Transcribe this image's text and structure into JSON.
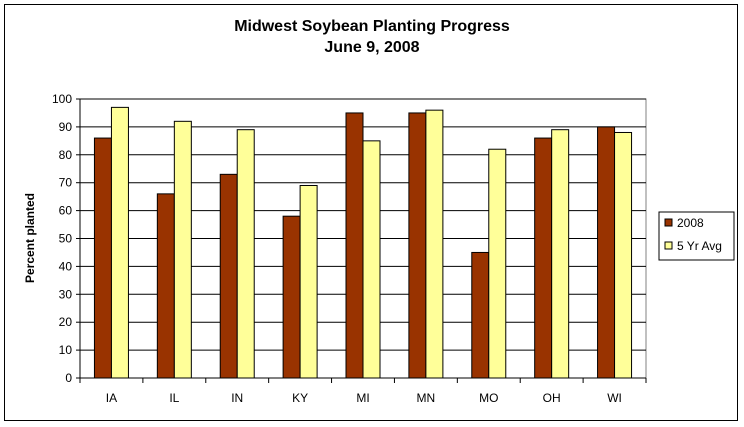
{
  "chart_data": {
    "type": "bar",
    "title": "Midwest Soybean Planting Progress",
    "subtitle": "June 9, 2008",
    "xlabel": "",
    "ylabel": "Percent planted",
    "ylim": [
      0,
      100
    ],
    "ytick_step": 10,
    "grid": true,
    "legend_position": "right",
    "categories": [
      "IA",
      "IL",
      "IN",
      "KY",
      "MI",
      "MN",
      "MO",
      "OH",
      "WI"
    ],
    "series": [
      {
        "name": "2008",
        "color": "#993300",
        "values": [
          86,
          66,
          73,
          58,
          95,
          95,
          45,
          86,
          90
        ]
      },
      {
        "name": "5 Yr Avg",
        "color": "#FFFF99",
        "values": [
          97,
          92,
          89,
          69,
          85,
          96,
          82,
          89,
          88
        ]
      }
    ]
  }
}
